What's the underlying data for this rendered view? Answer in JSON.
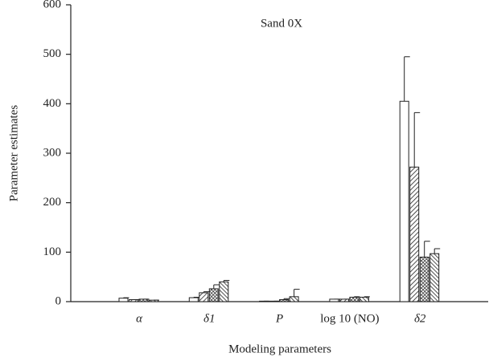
{
  "chart_data": {
    "type": "bar",
    "title": "Sand 0X",
    "x_label": "Modeling parameters",
    "y_label": "Parameter estimates",
    "categories": [
      "α",
      "δ1",
      "P",
      "log 10 (NO)",
      "δ2"
    ],
    "series": [
      {
        "pattern": "none",
        "values": [
          7,
          8,
          1,
          5,
          405
        ],
        "errors": [
          1,
          1,
          0,
          0,
          90
        ]
      },
      {
        "pattern": "diagonal",
        "values": [
          4,
          18,
          1,
          5,
          272
        ],
        "errors": [
          0,
          2,
          0,
          0,
          110
        ]
      },
      {
        "pattern": "crosshatch",
        "values": [
          5,
          26,
          4,
          9,
          90
        ],
        "errors": [
          0,
          8,
          2,
          1,
          32
        ]
      },
      {
        "pattern": "backdiagonal",
        "values": [
          3,
          40,
          10,
          9,
          97
        ],
        "errors": [
          0,
          3,
          15,
          1,
          10
        ]
      }
    ],
    "ylim": [
      0,
      600
    ],
    "yticks": [
      0,
      100,
      200,
      300,
      400,
      500,
      600
    ]
  }
}
